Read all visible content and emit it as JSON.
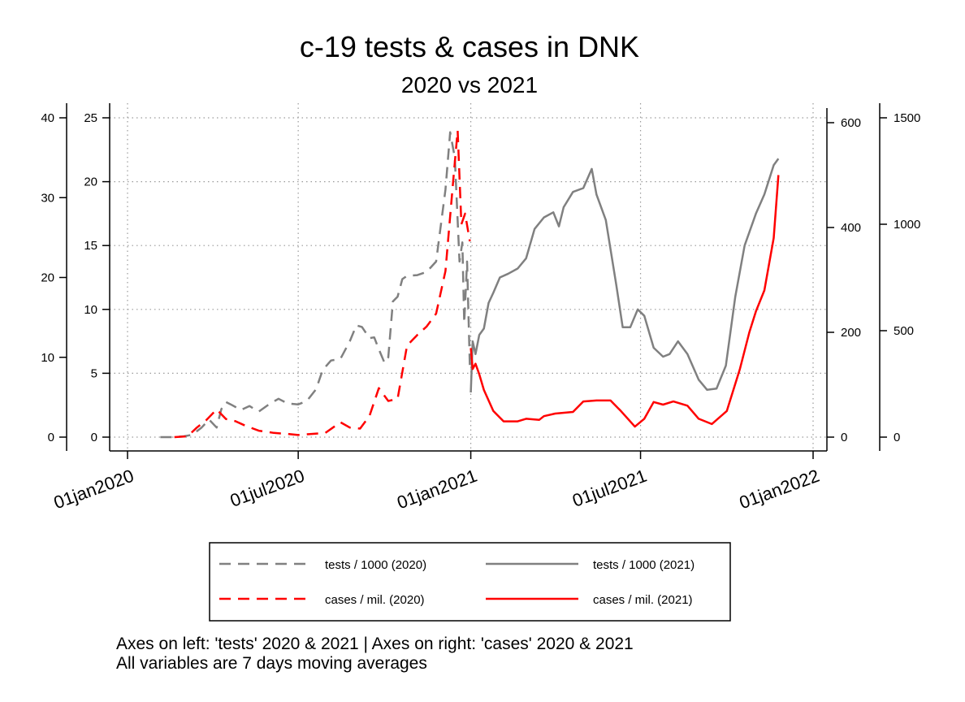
{
  "chart_data": {
    "type": "line",
    "title": "c-19 tests & cases in DNK",
    "subtitle": "2020 vs 2021",
    "grid": true,
    "legend_position": "bottom",
    "x_axis": {
      "type": "date",
      "range": [
        "2020-01-01",
        "2022-01-01"
      ],
      "ticks": [
        {
          "date": "2020-01-01",
          "label": "01jan2020"
        },
        {
          "date": "2020-07-01",
          "label": "01jul2020"
        },
        {
          "date": "2021-01-01",
          "label": "01jan2021"
        },
        {
          "date": "2021-07-01",
          "label": "01jul2021"
        },
        {
          "date": "2022-01-01",
          "label": "01jan2022"
        }
      ]
    },
    "y_axes": [
      {
        "id": "tests2020",
        "side": "left",
        "range": [
          0,
          40
        ],
        "ticks": [
          "0",
          "10",
          "20",
          "30",
          "40"
        ]
      },
      {
        "id": "tests2021",
        "side": "left",
        "range": [
          0,
          25
        ],
        "ticks": [
          "0",
          "5",
          "10",
          "15",
          "20",
          "25"
        ]
      },
      {
        "id": "cases2021",
        "side": "right",
        "range": [
          0,
          600
        ],
        "ticks": [
          "0",
          "200",
          "400",
          "600"
        ]
      },
      {
        "id": "cases2020",
        "side": "right",
        "range": [
          0,
          1500
        ],
        "ticks": [
          "0",
          "500",
          "1000",
          "1500"
        ]
      }
    ],
    "series": [
      {
        "name": "tests / 1000 (2020)",
        "axis": "tests2020",
        "color": "#808080",
        "dash": "dashed",
        "points": [
          [
            "2020-02-05",
            0
          ],
          [
            "2020-02-20",
            0
          ],
          [
            "2020-03-01",
            0.1
          ],
          [
            "2020-03-10",
            0.3
          ],
          [
            "2020-03-20",
            1.2
          ],
          [
            "2020-03-28",
            2.2
          ],
          [
            "2020-04-05",
            1.2
          ],
          [
            "2020-04-10",
            3.5
          ],
          [
            "2020-04-15",
            4.4
          ],
          [
            "2020-04-20",
            4.1
          ],
          [
            "2020-05-01",
            3.4
          ],
          [
            "2020-05-10",
            3.9
          ],
          [
            "2020-05-20",
            3.2
          ],
          [
            "2020-06-01",
            4.2
          ],
          [
            "2020-06-10",
            4.8
          ],
          [
            "2020-06-20",
            4.2
          ],
          [
            "2020-07-01",
            4.1
          ],
          [
            "2020-07-10",
            4.5
          ],
          [
            "2020-07-20",
            6.0
          ],
          [
            "2020-07-27",
            8.4
          ],
          [
            "2020-08-05",
            9.6
          ],
          [
            "2020-08-15",
            9.8
          ],
          [
            "2020-08-25",
            12.0
          ],
          [
            "2020-09-01",
            14.0
          ],
          [
            "2020-09-07",
            13.8
          ],
          [
            "2020-09-15",
            12.4
          ],
          [
            "2020-09-20",
            12.5
          ],
          [
            "2020-09-25",
            11.0
          ],
          [
            "2020-10-01",
            9.3
          ],
          [
            "2020-10-05",
            10.0
          ],
          [
            "2020-10-10",
            17.0
          ],
          [
            "2020-10-15",
            17.6
          ],
          [
            "2020-10-20",
            19.8
          ],
          [
            "2020-10-25",
            20.2
          ],
          [
            "2020-11-05",
            20.3
          ],
          [
            "2020-11-15",
            20.7
          ],
          [
            "2020-11-25",
            22.0
          ],
          [
            "2020-12-05",
            31.0
          ],
          [
            "2020-12-10",
            38.2
          ],
          [
            "2020-12-15",
            35.0
          ],
          [
            "2020-12-20",
            22.0
          ],
          [
            "2020-12-23",
            24.4
          ],
          [
            "2020-12-25",
            14.3
          ],
          [
            "2020-12-28",
            22.0
          ],
          [
            "2020-12-31",
            9.0
          ]
        ]
      },
      {
        "name": "tests / 1000 (2021)",
        "axis": "tests2021",
        "color": "#808080",
        "dash": "solid",
        "points": [
          [
            "2021-01-01",
            3.5
          ],
          [
            "2021-01-03",
            7.5
          ],
          [
            "2021-01-06",
            6.5
          ],
          [
            "2021-01-10",
            8.0
          ],
          [
            "2021-01-15",
            8.5
          ],
          [
            "2021-01-20",
            10.5
          ],
          [
            "2021-01-25",
            11.3
          ],
          [
            "2021-02-01",
            12.5
          ],
          [
            "2021-02-10",
            12.8
          ],
          [
            "2021-02-20",
            13.2
          ],
          [
            "2021-03-01",
            14.0
          ],
          [
            "2021-03-10",
            16.3
          ],
          [
            "2021-03-20",
            17.2
          ],
          [
            "2021-03-30",
            17.6
          ],
          [
            "2021-04-05",
            16.5
          ],
          [
            "2021-04-10",
            18.0
          ],
          [
            "2021-04-20",
            19.2
          ],
          [
            "2021-05-01",
            19.5
          ],
          [
            "2021-05-10",
            21.0
          ],
          [
            "2021-05-15",
            19.0
          ],
          [
            "2021-05-25",
            17.0
          ],
          [
            "2021-06-05",
            12.0
          ],
          [
            "2021-06-12",
            8.6
          ],
          [
            "2021-06-20",
            8.6
          ],
          [
            "2021-06-28",
            10.0
          ],
          [
            "2021-07-05",
            9.5
          ],
          [
            "2021-07-15",
            7.0
          ],
          [
            "2021-07-25",
            6.3
          ],
          [
            "2021-08-01",
            6.5
          ],
          [
            "2021-08-10",
            7.5
          ],
          [
            "2021-08-20",
            6.5
          ],
          [
            "2021-09-01",
            4.5
          ],
          [
            "2021-09-10",
            3.7
          ],
          [
            "2021-09-20",
            3.8
          ],
          [
            "2021-09-30",
            5.6
          ],
          [
            "2021-10-10",
            11.0
          ],
          [
            "2021-10-20",
            15.0
          ],
          [
            "2021-11-01",
            17.5
          ],
          [
            "2021-11-10",
            19.0
          ],
          [
            "2021-11-20",
            21.3
          ],
          [
            "2021-11-25",
            21.8
          ]
        ]
      },
      {
        "name": "cases / mil. (2020)",
        "axis": "cases2020",
        "color": "#ff0000",
        "dash": "dashed",
        "points": [
          [
            "2020-02-20",
            0
          ],
          [
            "2020-03-05",
            4
          ],
          [
            "2020-03-15",
            45
          ],
          [
            "2020-03-25",
            80
          ],
          [
            "2020-04-05",
            130
          ],
          [
            "2020-04-15",
            85
          ],
          [
            "2020-04-25",
            75
          ],
          [
            "2020-05-05",
            55
          ],
          [
            "2020-05-20",
            30
          ],
          [
            "2020-06-05",
            20
          ],
          [
            "2020-06-20",
            15
          ],
          [
            "2020-07-01",
            10
          ],
          [
            "2020-07-15",
            15
          ],
          [
            "2020-07-30",
            20
          ],
          [
            "2020-08-15",
            70
          ],
          [
            "2020-08-25",
            45
          ],
          [
            "2020-09-05",
            40
          ],
          [
            "2020-09-15",
            100
          ],
          [
            "2020-09-25",
            230
          ],
          [
            "2020-10-05",
            170
          ],
          [
            "2020-10-15",
            180
          ],
          [
            "2020-10-25",
            430
          ],
          [
            "2020-11-05",
            480
          ],
          [
            "2020-11-15",
            520
          ],
          [
            "2020-11-25",
            580
          ],
          [
            "2020-12-05",
            780
          ],
          [
            "2020-12-13",
            1190
          ],
          [
            "2020-12-18",
            1440
          ],
          [
            "2020-12-22",
            1000
          ],
          [
            "2020-12-26",
            1050
          ],
          [
            "2020-12-31",
            920
          ]
        ]
      },
      {
        "name": "cases / mil. (2021)",
        "axis": "cases2021",
        "color": "#ff0000",
        "dash": "solid",
        "points": [
          [
            "2021-01-01",
            170
          ],
          [
            "2021-01-03",
            130
          ],
          [
            "2021-01-06",
            140
          ],
          [
            "2021-01-10",
            120
          ],
          [
            "2021-01-15",
            90
          ],
          [
            "2021-01-25",
            50
          ],
          [
            "2021-02-05",
            30
          ],
          [
            "2021-02-20",
            30
          ],
          [
            "2021-03-01",
            35
          ],
          [
            "2021-03-15",
            33
          ],
          [
            "2021-03-20",
            40
          ],
          [
            "2021-04-01",
            45
          ],
          [
            "2021-04-20",
            48
          ],
          [
            "2021-05-01",
            68
          ],
          [
            "2021-05-15",
            70
          ],
          [
            "2021-05-30",
            70
          ],
          [
            "2021-06-10",
            50
          ],
          [
            "2021-06-25",
            20
          ],
          [
            "2021-07-05",
            35
          ],
          [
            "2021-07-15",
            67
          ],
          [
            "2021-07-25",
            62
          ],
          [
            "2021-08-05",
            68
          ],
          [
            "2021-08-20",
            60
          ],
          [
            "2021-09-01",
            35
          ],
          [
            "2021-09-15",
            25
          ],
          [
            "2021-10-01",
            50
          ],
          [
            "2021-10-15",
            130
          ],
          [
            "2021-10-25",
            200
          ],
          [
            "2021-11-01",
            240
          ],
          [
            "2021-11-10",
            280
          ],
          [
            "2021-11-20",
            380
          ],
          [
            "2021-11-25",
            500
          ]
        ]
      }
    ]
  },
  "legend": {
    "items": [
      {
        "label": "tests / 1000 (2020)",
        "color": "#808080",
        "dash": "dashed"
      },
      {
        "label": "tests / 1000 (2021)",
        "color": "#808080",
        "dash": "solid"
      },
      {
        "label": "cases / mil. (2020)",
        "color": "#ff0000",
        "dash": "dashed"
      },
      {
        "label": "cases / mil. (2021)",
        "color": "#ff0000",
        "dash": "solid"
      }
    ]
  },
  "notes": [
    "Axes on left: 'tests' 2020 & 2021 | Axes on right: 'cases' 2020 & 2021",
    "All variables are 7 days moving averages"
  ]
}
